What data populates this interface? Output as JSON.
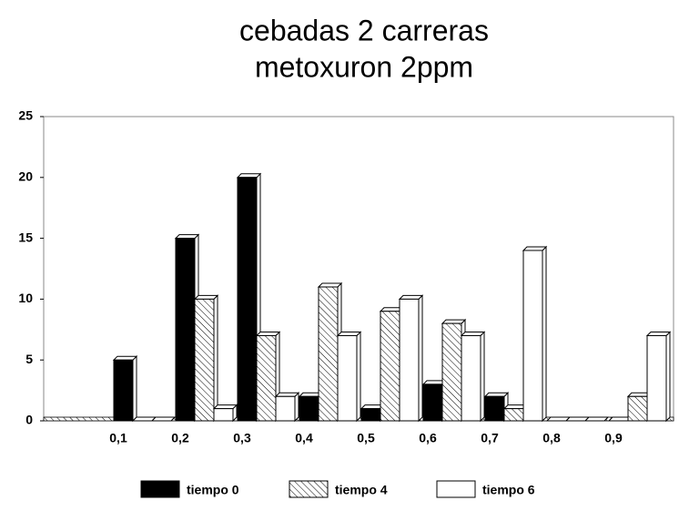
{
  "chart_data": {
    "type": "bar",
    "title": [
      "cebadas 2 carreras",
      "metoxuron 2ppm"
    ],
    "categories": [
      "0,1",
      "0,2",
      "0,3",
      "0,4",
      "0,5",
      "0,6",
      "0,7",
      "0,8",
      "0,9"
    ],
    "series": [
      {
        "name": "tiempo 0",
        "color": "#000000",
        "values": [
          5,
          15,
          20,
          2,
          1,
          3,
          2,
          0,
          0
        ]
      },
      {
        "name": "tiempo 4",
        "color": "hatch",
        "values": [
          0,
          10,
          7,
          11,
          9,
          8,
          1,
          0,
          2
        ]
      },
      {
        "name": "tiempo 6",
        "color": "#ffffff",
        "values": [
          0,
          1,
          2,
          7,
          10,
          7,
          14,
          0,
          7
        ]
      }
    ],
    "ylim": [
      0,
      25
    ],
    "yticks": [
      0,
      5,
      10,
      15,
      20,
      25
    ],
    "grid": false
  }
}
